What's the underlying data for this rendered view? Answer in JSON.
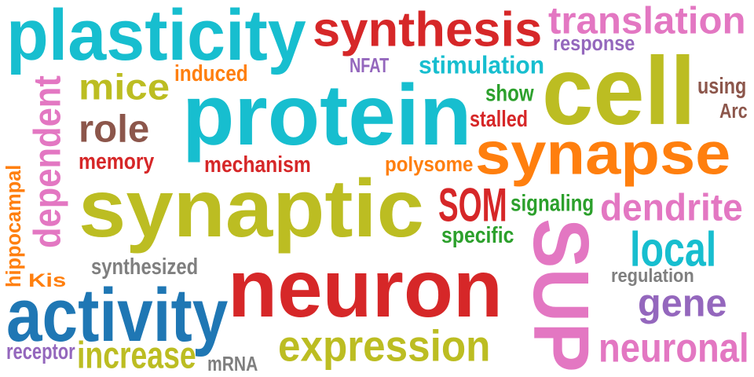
{
  "words": [
    {
      "text": "plasticity",
      "color": "#17becf"
    },
    {
      "text": "synthesis",
      "color": "#d62728"
    },
    {
      "text": "translation",
      "color": "#e377c2"
    },
    {
      "text": "response",
      "color": "#9467bd"
    },
    {
      "text": "stimulation",
      "color": "#17becf"
    },
    {
      "text": "NFAT",
      "color": "#9467bd"
    },
    {
      "text": "induced",
      "color": "#ff7f0e"
    },
    {
      "text": "mice",
      "color": "#bcbd22"
    },
    {
      "text": "protein",
      "color": "#17becf"
    },
    {
      "text": "cell",
      "color": "#bcbd22"
    },
    {
      "text": "using",
      "color": "#8c564b"
    },
    {
      "text": "Arc",
      "color": "#8c564b"
    },
    {
      "text": "show",
      "color": "#2ca02c"
    },
    {
      "text": "stalled",
      "color": "#d62728"
    },
    {
      "text": "dependent",
      "color": "#e377c2"
    },
    {
      "text": "role",
      "color": "#8c564b"
    },
    {
      "text": "memory",
      "color": "#d62728"
    },
    {
      "text": "mechanism",
      "color": "#d62728"
    },
    {
      "text": "polysome",
      "color": "#ff7f0e"
    },
    {
      "text": "synapse",
      "color": "#ff7f0e"
    },
    {
      "text": "hippocampal",
      "color": "#ff7f0e"
    },
    {
      "text": "synaptic",
      "color": "#bcbd22"
    },
    {
      "text": "SOM",
      "color": "#d62728"
    },
    {
      "text": "signaling",
      "color": "#2ca02c"
    },
    {
      "text": "dendrite",
      "color": "#e377c2"
    },
    {
      "text": "specific",
      "color": "#2ca02c"
    },
    {
      "text": "local",
      "color": "#17becf"
    },
    {
      "text": "Kis",
      "color": "#ff7f0e"
    },
    {
      "text": "synthesized",
      "color": "#7f7f7f"
    },
    {
      "text": "neuron",
      "color": "#d62728"
    },
    {
      "text": "SUP",
      "color": "#e377c2"
    },
    {
      "text": "regulation",
      "color": "#7f7f7f"
    },
    {
      "text": "activity",
      "color": "#1f77b4"
    },
    {
      "text": "gene",
      "color": "#9467bd"
    },
    {
      "text": "expression",
      "color": "#bcbd22"
    },
    {
      "text": "receptor",
      "color": "#9467bd"
    },
    {
      "text": "increase",
      "color": "#bcbd22"
    },
    {
      "text": "mRNA",
      "color": "#7f7f7f"
    },
    {
      "text": "neuronal",
      "color": "#e377c2"
    }
  ]
}
